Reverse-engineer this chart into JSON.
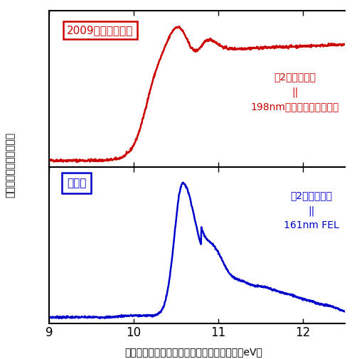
{
  "xlim": [
    9,
    12.5
  ],
  "xticks": [
    9,
    10,
    11,
    12
  ],
  "xlabel": "電子を引き劃がすために必要なエネルギー（eV）",
  "ylabel": "強度（電子の数に比例）",
  "top_label": "2009年発表の研究",
  "top_ann1": "第2の光パルス",
  "top_ann2": "||",
  "top_ann3": "198nmフェムト秒レーザー",
  "top_color": "#cc0000",
  "bottom_label": "本研究",
  "bottom_ann1": "第2の光パルス",
  "bottom_ann2": "||",
  "bottom_ann3": "161nm FEL",
  "bottom_color": "#0000cc",
  "bg": "#ffffff"
}
